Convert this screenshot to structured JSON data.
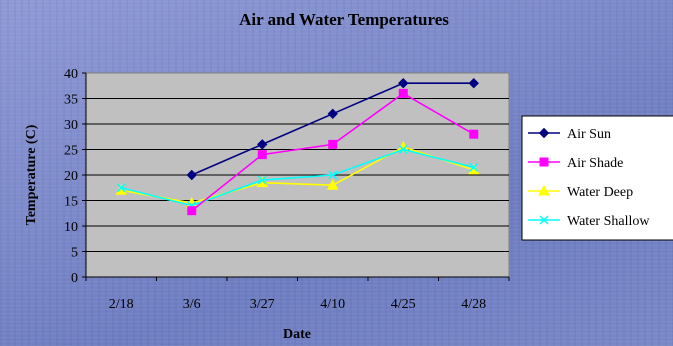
{
  "chart_data": {
    "type": "line",
    "title": "Air and Water Temperatures",
    "xlabel": "Date",
    "ylabel": "Temperature (C)",
    "categories": [
      "2/18",
      "3/6",
      "3/27",
      "4/10",
      "4/25",
      "4/28"
    ],
    "ylim": [
      0,
      40
    ],
    "yticks": [
      0,
      5,
      10,
      15,
      20,
      25,
      30,
      35,
      40
    ],
    "grid": true,
    "legend_position": "right",
    "plot_background": "#c0c0c0",
    "series": [
      {
        "name": "Air Sun",
        "color": "#000080",
        "marker": "diamond",
        "values": [
          null,
          20,
          26,
          32,
          38,
          38
        ]
      },
      {
        "name": "Air Shade",
        "color": "#ff00ff",
        "marker": "square",
        "values": [
          null,
          13,
          24,
          26,
          36,
          28
        ]
      },
      {
        "name": "Water Deep",
        "color": "#ffff00",
        "marker": "triangle",
        "values": [
          17,
          14.5,
          18.5,
          18,
          25.5,
          21
        ]
      },
      {
        "name": "Water Shallow",
        "color": "#00ffff",
        "marker": "x",
        "values": [
          17.5,
          14,
          19,
          20,
          25,
          21.5
        ]
      }
    ]
  }
}
